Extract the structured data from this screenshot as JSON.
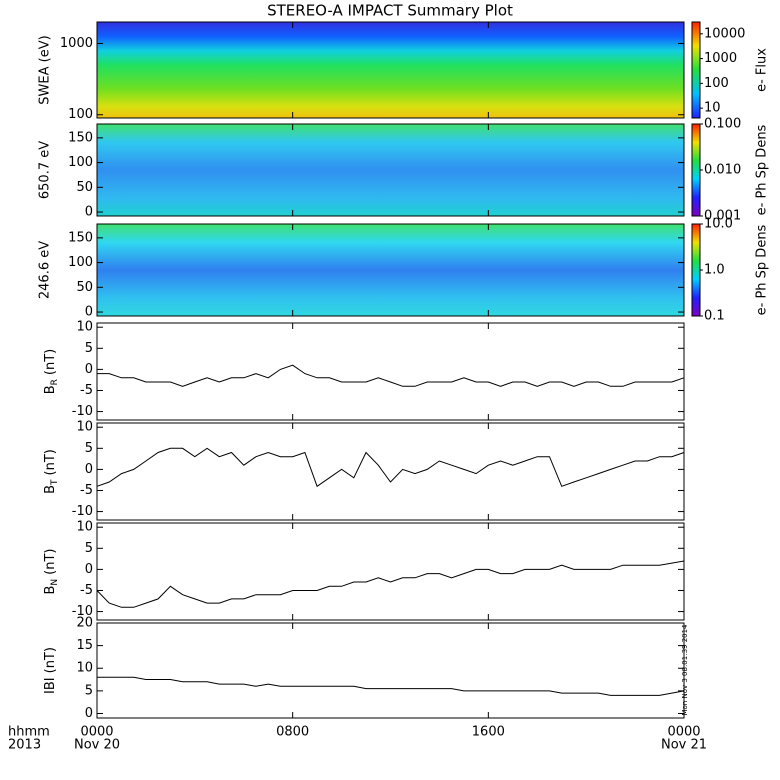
{
  "title": "STEREO-A IMPACT Summary Plot",
  "stamp": "Mon Nov  3 08:01:39 2014",
  "x_axis": {
    "xlim": [
      0,
      24
    ],
    "xticks": [
      {
        "value": 0,
        "label": "0000"
      },
      {
        "value": 8,
        "label": "0800"
      },
      {
        "value": 16,
        "label": "1600"
      },
      {
        "value": 24,
        "label": "0000"
      }
    ],
    "dates": [
      {
        "value": 0,
        "label": "Nov 20"
      },
      {
        "value": 24,
        "label": "Nov 21"
      }
    ],
    "row_labels": [
      "hhmm",
      "2013"
    ]
  },
  "chart_data": [
    {
      "type": "heatmap",
      "ylabel": "SWEA (eV)",
      "ylim": [
        90,
        2000
      ],
      "yticks": [
        100,
        1000
      ],
      "log_y": true,
      "colorbar": {
        "label": "e- Flux",
        "clim": [
          4,
          30000
        ],
        "log": true,
        "ticks": [
          10,
          100,
          1000,
          10000
        ]
      }
    },
    {
      "type": "heatmap",
      "ylabel": "650.7 eV",
      "ylim": [
        -8,
        178
      ],
      "yticks": [
        0,
        50,
        100,
        150
      ],
      "log_y": false,
      "colorbar": {
        "label": "e- Ph Sp Dens",
        "clim": [
          0.001,
          0.1
        ],
        "log": true,
        "ticks": [
          {
            "value": 0.001,
            "label": "0.001"
          },
          {
            "value": 0.01,
            "label": "0.010"
          },
          {
            "value": 0.1,
            "label": "0.100"
          }
        ]
      }
    },
    {
      "type": "heatmap",
      "ylabel": "246.6 eV",
      "ylim": [
        -8,
        178
      ],
      "yticks": [
        0,
        50,
        100,
        150
      ],
      "log_y": false,
      "colorbar": {
        "label": "e- Ph Sp Dens",
        "clim": [
          0.1,
          10
        ],
        "log": true,
        "ticks": [
          {
            "value": 0.1,
            "label": "0.1"
          },
          {
            "value": 1,
            "label": "1.0"
          },
          {
            "value": 10,
            "label": "10.0"
          }
        ]
      }
    },
    {
      "type": "line",
      "ylabel": {
        "main": "B",
        "sub": "R",
        "unit": "(nT)"
      },
      "ylim": [
        -12,
        11
      ],
      "yticks": [
        -10,
        -5,
        0,
        5,
        10
      ],
      "color": "#000000",
      "x": [
        0,
        0.5,
        1,
        1.5,
        2,
        2.5,
        3,
        3.5,
        4,
        4.5,
        5,
        5.5,
        6,
        6.5,
        7,
        7.5,
        8,
        8.5,
        9,
        9.5,
        10,
        10.5,
        11,
        11.5,
        12,
        12.5,
        13,
        13.5,
        14,
        14.5,
        15,
        15.5,
        16,
        16.5,
        17,
        17.5,
        18,
        18.5,
        19,
        19.5,
        20,
        20.5,
        21,
        21.5,
        22,
        22.5,
        23,
        23.5,
        24
      ],
      "values": [
        -1,
        -1,
        -2,
        -2,
        -3,
        -3,
        -3,
        -4,
        -3,
        -2,
        -3,
        -2,
        -2,
        -1,
        -2,
        0,
        1,
        -1,
        -2,
        -2,
        -3,
        -3,
        -3,
        -2,
        -3,
        -4,
        -4,
        -3,
        -3,
        -3,
        -2,
        -3,
        -3,
        -4,
        -3,
        -3,
        -4,
        -3,
        -3,
        -4,
        -3,
        -3,
        -4,
        -4,
        -3,
        -3,
        -3,
        -3,
        -2
      ]
    },
    {
      "type": "line",
      "ylabel": {
        "main": "B",
        "sub": "T",
        "unit": "(nT)"
      },
      "ylim": [
        -12,
        11
      ],
      "yticks": [
        -10,
        -5,
        0,
        5,
        10
      ],
      "color": "#000000",
      "x": [
        0,
        0.5,
        1,
        1.5,
        2,
        2.5,
        3,
        3.5,
        4,
        4.5,
        5,
        5.5,
        6,
        6.5,
        7,
        7.5,
        8,
        8.5,
        9,
        9.5,
        10,
        10.5,
        11,
        11.5,
        12,
        12.5,
        13,
        13.5,
        14,
        14.5,
        15,
        15.5,
        16,
        16.5,
        17,
        17.5,
        18,
        18.5,
        19,
        19.5,
        20,
        20.5,
        21,
        21.5,
        22,
        22.5,
        23,
        23.5,
        24
      ],
      "values": [
        -4,
        -3,
        -1,
        0,
        2,
        4,
        5,
        5,
        3,
        5,
        3,
        4,
        1,
        3,
        4,
        3,
        3,
        4,
        -4,
        -2,
        0,
        -2,
        4,
        1,
        -3,
        0,
        -1,
        0,
        2,
        1,
        0,
        -1,
        1,
        2,
        1,
        2,
        3,
        3,
        -4,
        -3,
        -2,
        -1,
        0,
        1,
        2,
        2,
        3,
        3,
        4
      ]
    },
    {
      "type": "line",
      "ylabel": {
        "main": "B",
        "sub": "N",
        "unit": "(nT)"
      },
      "ylim": [
        -12,
        11
      ],
      "yticks": [
        -10,
        -5,
        0,
        5,
        10
      ],
      "color": "#000000",
      "x": [
        0,
        0.5,
        1,
        1.5,
        2,
        2.5,
        3,
        3.5,
        4,
        4.5,
        5,
        5.5,
        6,
        6.5,
        7,
        7.5,
        8,
        8.5,
        9,
        9.5,
        10,
        10.5,
        11,
        11.5,
        12,
        12.5,
        13,
        13.5,
        14,
        14.5,
        15,
        15.5,
        16,
        16.5,
        17,
        17.5,
        18,
        18.5,
        19,
        19.5,
        20,
        20.5,
        21,
        21.5,
        22,
        22.5,
        23,
        23.5,
        24
      ],
      "values": [
        -5,
        -8,
        -9,
        -9,
        -8,
        -7,
        -4,
        -6,
        -7,
        -8,
        -8,
        -7,
        -7,
        -6,
        -6,
        -6,
        -5,
        -5,
        -5,
        -4,
        -4,
        -3,
        -3,
        -2,
        -3,
        -2,
        -2,
        -1,
        -1,
        -2,
        -1,
        0,
        0,
        -1,
        -1,
        0,
        0,
        0,
        1,
        0,
        0,
        0,
        0,
        1,
        1,
        1,
        1,
        1.5,
        2
      ]
    },
    {
      "type": "line",
      "ylabel": {
        "main": "IBI",
        "unit": "(nT)"
      },
      "ylim": [
        -1,
        20
      ],
      "yticks": [
        0,
        5,
        10,
        15,
        20
      ],
      "color": "#000000",
      "x": [
        0,
        0.5,
        1,
        1.5,
        2,
        2.5,
        3,
        3.5,
        4,
        4.5,
        5,
        5.5,
        6,
        6.5,
        7,
        7.5,
        8,
        8.5,
        9,
        9.5,
        10,
        10.5,
        11,
        11.5,
        12,
        12.5,
        13,
        13.5,
        14,
        14.5,
        15,
        15.5,
        16,
        16.5,
        17,
        17.5,
        18,
        18.5,
        19,
        19.5,
        20,
        20.5,
        21,
        21.5,
        22,
        22.5,
        23,
        23.5,
        24
      ],
      "values": [
        8,
        8,
        8,
        8,
        7.5,
        7.5,
        7.5,
        7,
        7,
        7,
        6.5,
        6.5,
        6.5,
        6,
        6.5,
        6,
        6,
        6,
        6,
        6,
        6,
        6,
        5.5,
        5.5,
        5.5,
        5.5,
        5.5,
        5.5,
        5.5,
        5.5,
        5,
        5,
        5,
        5,
        5,
        5,
        5,
        5,
        4.5,
        4.5,
        4.5,
        4.5,
        4,
        4,
        4,
        4,
        4,
        4.5,
        5
      ]
    }
  ]
}
